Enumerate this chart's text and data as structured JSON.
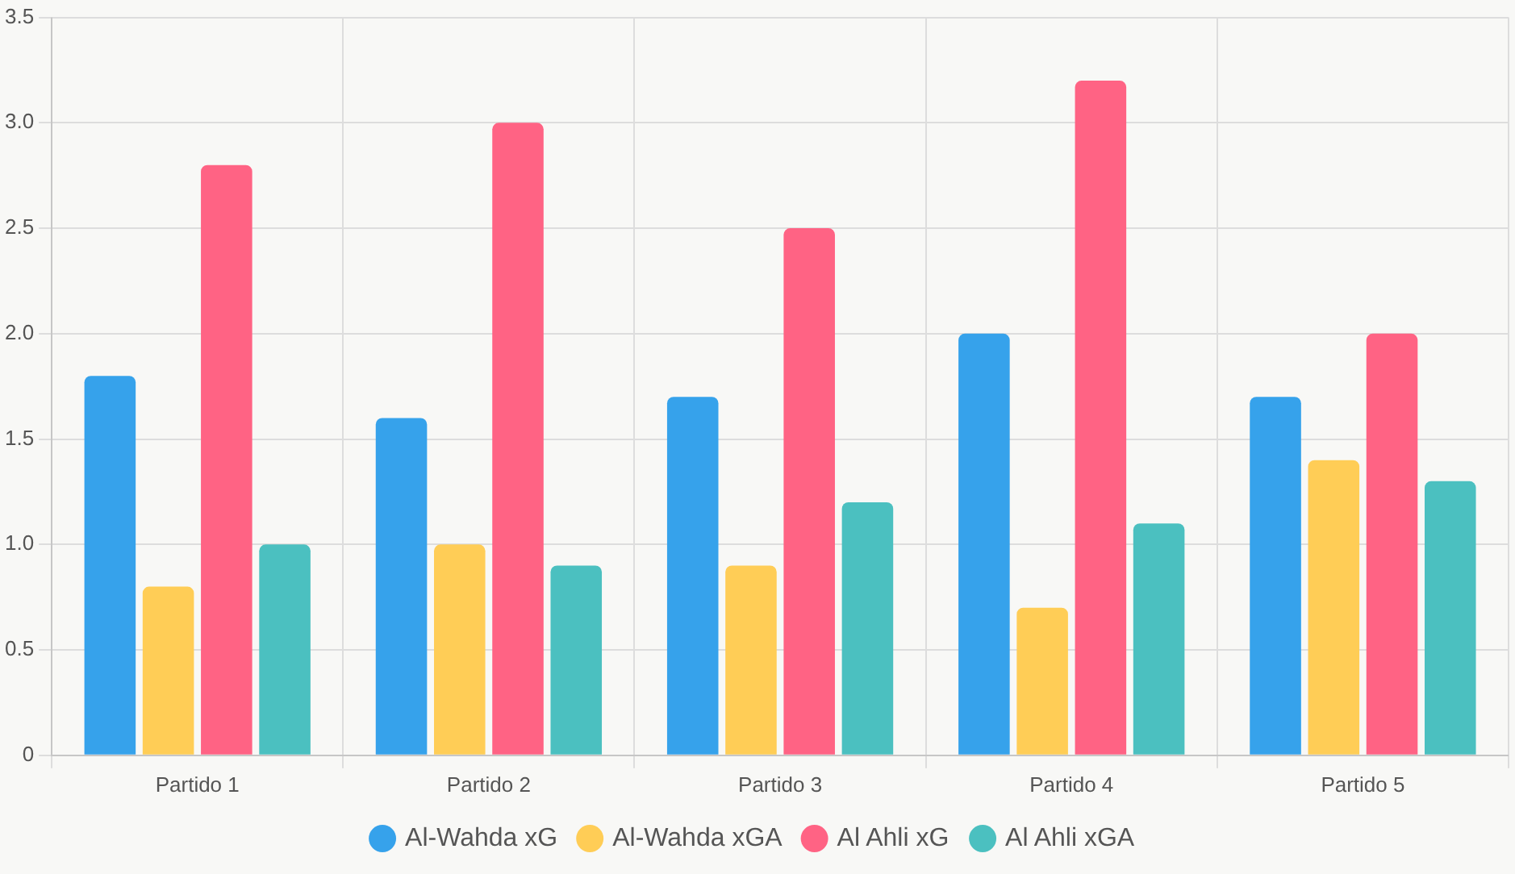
{
  "chart_data": {
    "type": "bar",
    "categories": [
      "Partido 1",
      "Partido 2",
      "Partido 3",
      "Partido 4",
      "Partido 5"
    ],
    "series": [
      {
        "name": "Al-Wahda xG",
        "color": "#36a2eb",
        "values": [
          1.8,
          1.6,
          1.7,
          2.0,
          1.7
        ]
      },
      {
        "name": "Al-Wahda xGA",
        "color": "#ffcd56",
        "values": [
          0.8,
          1.0,
          0.9,
          0.7,
          1.4
        ]
      },
      {
        "name": "Al Ahli xG",
        "color": "#ff6384",
        "values": [
          2.8,
          3.0,
          2.5,
          3.2,
          2.0
        ]
      },
      {
        "name": "Al Ahli xGA",
        "color": "#4bc0c0",
        "values": [
          1.0,
          0.9,
          1.2,
          1.1,
          1.3
        ]
      }
    ],
    "ylim": [
      0,
      3.5
    ],
    "yticks": [
      0,
      {
        "value": 0.5,
        "label": "0.5"
      },
      {
        "value": 1,
        "label": "1.0"
      },
      {
        "value": 1.5,
        "label": "1.5"
      },
      {
        "value": 2,
        "label": "2.0"
      },
      {
        "value": 2.5,
        "label": "2.5"
      },
      {
        "value": 3,
        "label": "3.0"
      },
      {
        "value": 3.5,
        "label": "3.5"
      }
    ],
    "grid": true,
    "legend": "bottom"
  }
}
